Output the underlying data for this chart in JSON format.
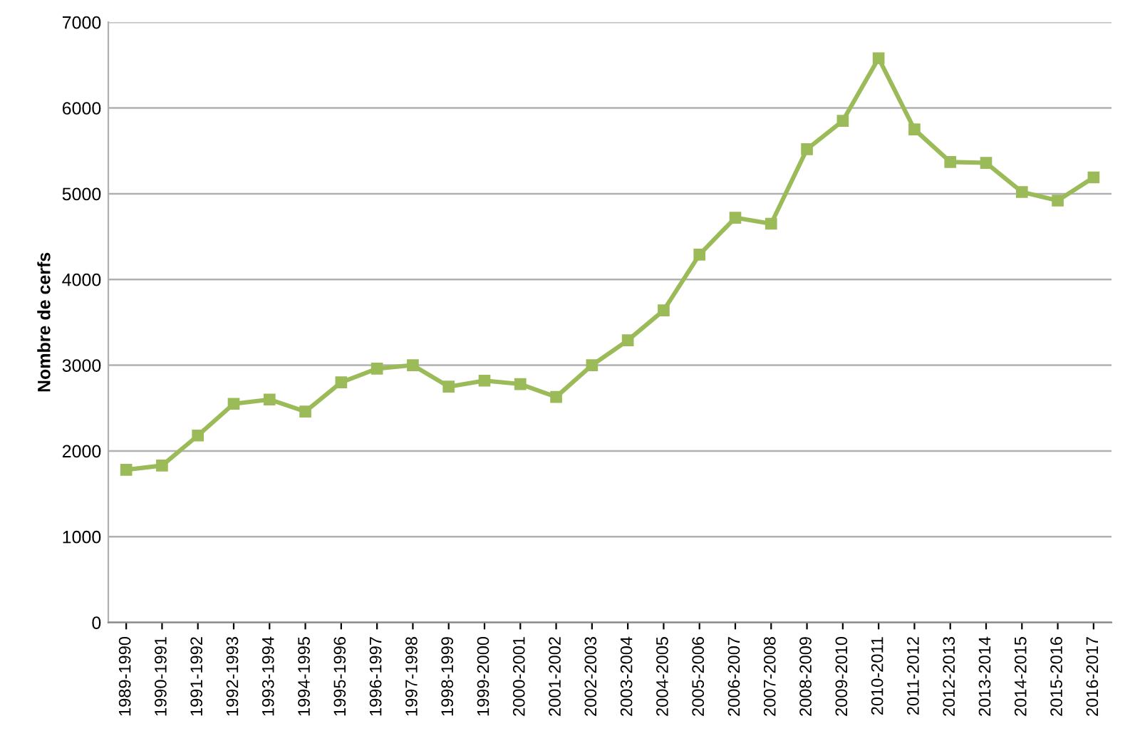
{
  "chart_data": {
    "type": "line",
    "ylabel": "Nombre de cerfs",
    "categories": [
      "1989-1990",
      "1990-1991",
      "1991-1992",
      "1992-1993",
      "1993-1994",
      "1994-1995",
      "1995-1996",
      "1996-1997",
      "1997-1998",
      "1998-1999",
      "1999-2000",
      "2000-2001",
      "2001-2002",
      "2002-2003",
      "2003-2004",
      "2004-2005",
      "2005-2006",
      "2006-2007",
      "2007-2008",
      "2008-2009",
      "2009-2010",
      "2010-2011",
      "2011-2012",
      "2012-2013",
      "2013-2014",
      "2014-2015",
      "2015-2016",
      "2016-2017"
    ],
    "series": [
      {
        "color": "#9bbb59",
        "values": [
          1780,
          1830,
          2180,
          2550,
          2600,
          2460,
          2800,
          2960,
          3000,
          2750,
          2820,
          2780,
          2630,
          3000,
          3290,
          3640,
          4290,
          4720,
          4650,
          5520,
          5850,
          6580,
          5750,
          5370,
          5360,
          5020,
          4920,
          5190
        ]
      }
    ],
    "ylim": [
      0,
      7000
    ],
    "yticks": [
      0,
      1000,
      2000,
      3000,
      4000,
      5000,
      6000,
      7000
    ],
    "grid": "y",
    "marker": "square",
    "line_style": "solid",
    "legend": false
  }
}
